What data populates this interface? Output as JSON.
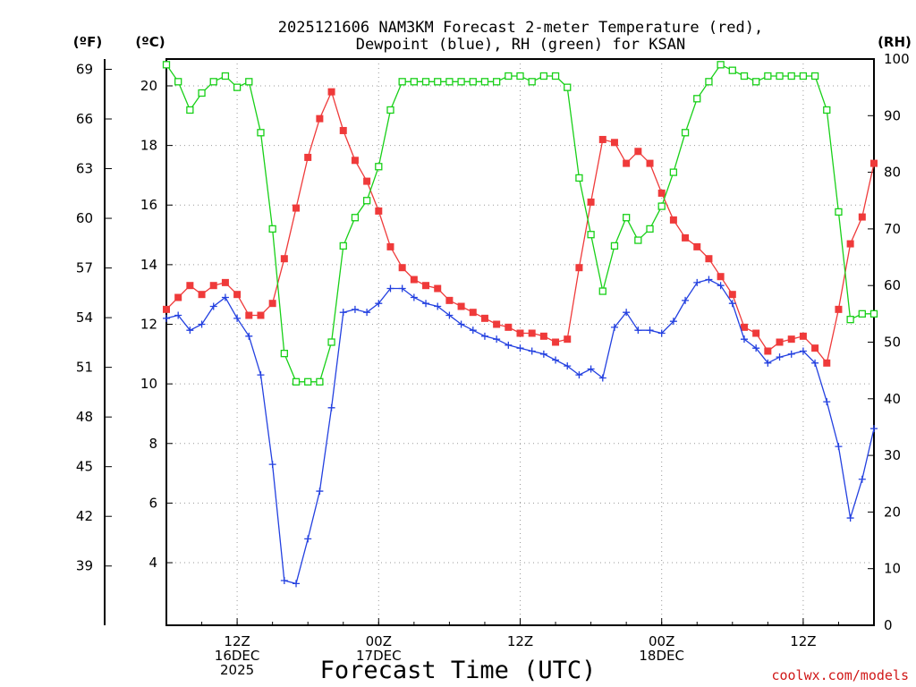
{
  "chart_data": {
    "type": "line",
    "title_line1": "2025121606 NAM3KM Forecast 2-meter Temperature (red),",
    "title_line2": "Dewpoint (blue), RH (green) for KSAN",
    "xlabel": "Forecast Time (UTC)",
    "credit": "coolwx.com/models",
    "units": {
      "f": "(ºF)",
      "c": "(ºC)",
      "rh": "(RH)"
    },
    "fahrenheit_ticks": [
      "69",
      "66",
      "63",
      "60",
      "57",
      "54",
      "51",
      "48",
      "45",
      "42",
      "39"
    ],
    "celsius_ticks": [
      "20",
      "18",
      "16",
      "14",
      "12",
      "10",
      "8",
      "6",
      "4"
    ],
    "rh_ticks": [
      "100",
      "90",
      "80",
      "70",
      "60",
      "50",
      "40",
      "30",
      "20",
      "10",
      "0"
    ],
    "x_ticks": [
      {
        "hour": 12,
        "lines": [
          "12Z",
          "16DEC",
          "2025"
        ]
      },
      {
        "hour": 24,
        "lines": [
          "00Z",
          "17DEC"
        ]
      },
      {
        "hour": 36,
        "lines": [
          "12Z"
        ]
      },
      {
        "hour": 48,
        "lines": [
          "00Z",
          "18DEC"
        ]
      },
      {
        "hour": 60,
        "lines": [
          "12Z"
        ]
      }
    ],
    "x_range_hours": [
      6,
      66
    ],
    "c_range": [
      1.9,
      20.9
    ],
    "rh_range": [
      0,
      100
    ],
    "f_range": [
      35.42,
      69.62
    ],
    "series": [
      {
        "name": "2-meter Temperature (°C)",
        "axis": "c",
        "color": "#ef3a3a",
        "marker": "square-filled",
        "hours": [
          6,
          7,
          8,
          9,
          10,
          11,
          12,
          13,
          14,
          15,
          16,
          17,
          18,
          19,
          20,
          21,
          22,
          23,
          24,
          25,
          26,
          27,
          28,
          29,
          30,
          31,
          32,
          33,
          34,
          35,
          36,
          37,
          38,
          39,
          40,
          41,
          42,
          43,
          44,
          45,
          46,
          47,
          48,
          49,
          50,
          51,
          52,
          53,
          54,
          55,
          56,
          57,
          58,
          59,
          60,
          61,
          62,
          63,
          64,
          65,
          66
        ],
        "values": [
          12.5,
          12.9,
          13.3,
          13.0,
          13.3,
          13.4,
          13.0,
          12.3,
          12.3,
          12.7,
          14.2,
          15.9,
          17.6,
          18.9,
          19.8,
          18.5,
          17.5,
          16.8,
          15.8,
          14.6,
          13.9,
          13.5,
          13.3,
          13.2,
          12.8,
          12.6,
          12.4,
          12.2,
          12.0,
          11.9,
          11.7,
          11.7,
          11.6,
          11.4,
          11.5,
          13.9,
          16.1,
          18.2,
          18.1,
          17.4,
          17.8,
          17.4,
          16.4,
          15.5,
          14.9,
          14.6,
          14.2,
          13.6,
          13.0,
          11.9,
          11.7,
          11.1,
          11.4,
          11.5,
          11.6,
          11.2,
          10.7,
          12.5,
          14.7,
          15.6,
          17.4
        ]
      },
      {
        "name": "Dewpoint (°C)",
        "axis": "c",
        "color": "#2340e0",
        "marker": "plus",
        "hours": [
          6,
          7,
          8,
          9,
          10,
          11,
          12,
          13,
          14,
          15,
          16,
          17,
          18,
          19,
          20,
          21,
          22,
          23,
          24,
          25,
          26,
          27,
          28,
          29,
          30,
          31,
          32,
          33,
          34,
          35,
          36,
          37,
          38,
          39,
          40,
          41,
          42,
          43,
          44,
          45,
          46,
          47,
          48,
          49,
          50,
          51,
          52,
          53,
          54,
          55,
          56,
          57,
          58,
          59,
          60,
          61,
          62,
          63,
          64,
          65,
          66
        ],
        "values": [
          12.2,
          12.3,
          11.8,
          12.0,
          12.6,
          12.9,
          12.2,
          11.6,
          10.3,
          7.3,
          3.4,
          3.3,
          4.8,
          6.4,
          9.2,
          12.4,
          12.5,
          12.4,
          12.7,
          13.2,
          13.2,
          12.9,
          12.7,
          12.6,
          12.3,
          12.0,
          11.8,
          11.6,
          11.5,
          11.3,
          11.2,
          11.1,
          11.0,
          10.8,
          10.6,
          10.3,
          10.5,
          10.2,
          11.9,
          12.4,
          11.8,
          11.8,
          11.7,
          12.1,
          12.8,
          13.4,
          13.5,
          13.3,
          12.7,
          11.5,
          11.2,
          10.7,
          10.9,
          11.0,
          11.1,
          10.7,
          9.4,
          7.9,
          5.5,
          6.8,
          8.5
        ]
      },
      {
        "name": "RH (%)",
        "axis": "rh",
        "color": "#18d018",
        "marker": "square-open",
        "hours": [
          6,
          7,
          8,
          9,
          10,
          11,
          12,
          13,
          14,
          15,
          16,
          17,
          18,
          19,
          20,
          21,
          22,
          23,
          24,
          25,
          26,
          27,
          28,
          29,
          30,
          31,
          32,
          33,
          34,
          35,
          36,
          37,
          38,
          39,
          40,
          41,
          42,
          43,
          44,
          45,
          46,
          47,
          48,
          49,
          50,
          51,
          52,
          53,
          54,
          55,
          56,
          57,
          58,
          59,
          60,
          61,
          62,
          63,
          64,
          65,
          66
        ],
        "values": [
          99,
          96,
          91,
          94,
          96,
          97,
          95,
          96,
          87,
          70,
          48,
          43,
          43,
          43,
          50,
          67,
          72,
          75,
          81,
          91,
          96,
          96,
          96,
          96,
          96,
          96,
          96,
          96,
          96,
          97,
          97,
          96,
          97,
          97,
          95,
          79,
          69,
          59,
          67,
          72,
          68,
          70,
          74,
          80,
          87,
          93,
          96,
          99,
          98,
          97,
          96,
          97,
          97,
          97,
          97,
          97,
          91,
          73,
          54,
          55,
          55
        ]
      }
    ]
  }
}
